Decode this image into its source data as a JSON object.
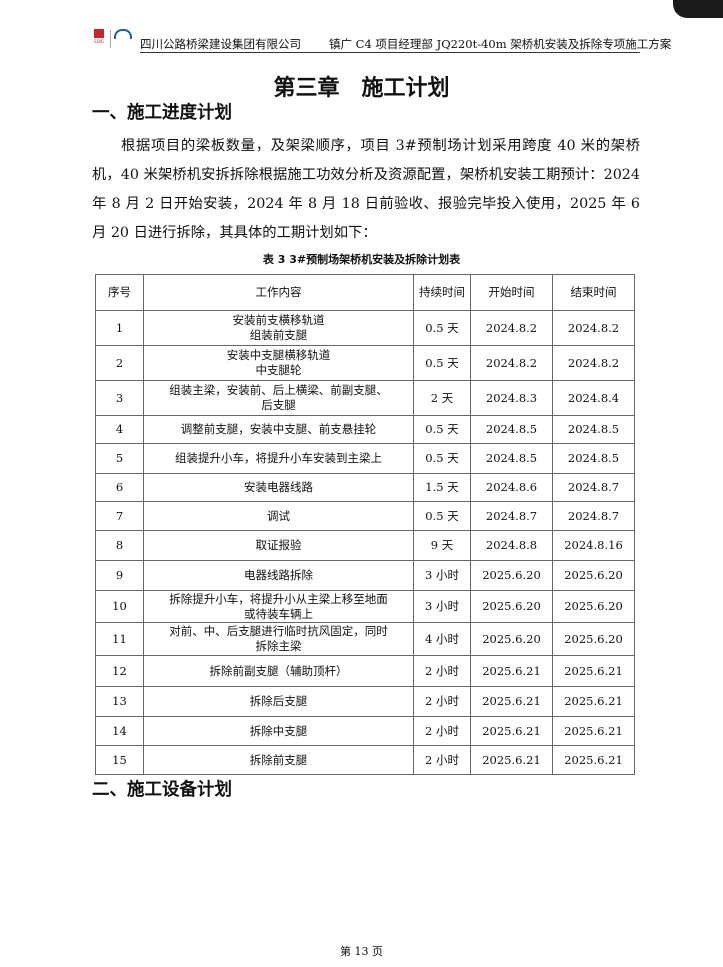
{
  "header": {
    "logo1_text": "SDIG",
    "company": "四川公路桥梁建设集团有限公司",
    "project": "镇广 C4 项目经理部 JQ220t-40m 架桥机安装及拆除专项施工方案"
  },
  "chapter_title": "第三章　施工计划",
  "section1": "一、施工进度计划",
  "paragraph": "根据项目的梁板数量，及架梁顺序，项目 3#预制场计划采用跨度 40 米的架桥机，40 米架桥机安拆拆除根据施工功效分析及资源配置，架桥机安装工期预计：2024 年 8 月 2 日开始安装，2024 年 8 月 18 日前验收、报验完毕投入使用，2025 年 6 月 20 日进行拆除，其具体的工期计划如下：",
  "table_caption": "表 3  3#预制场架桥机安装及拆除计划表",
  "table": {
    "headers": [
      "序号",
      "工作内容",
      "持续时间",
      "开始时间",
      "结束时间"
    ],
    "rows": [
      [
        "1",
        "安装前支横移轨道\n组装前支腿",
        "0.5 天",
        "2024.8.2",
        "2024.8.2"
      ],
      [
        "2",
        "安装中支腿横移轨道\n中支腿轮",
        "0.5 天",
        "2024.8.2",
        "2024.8.2"
      ],
      [
        "3",
        "组装主梁，安装前、后上横梁、前副支腿、\n后支腿",
        "2 天",
        "2024.8.3",
        "2024.8.4"
      ],
      [
        "4",
        "调整前支腿，安装中支腿、前支悬挂轮",
        "0.5 天",
        "2024.8.5",
        "2024.8.5"
      ],
      [
        "5",
        "组装提升小车，将提升小车安装到主梁上",
        "0.5 天",
        "2024.8.5",
        "2024.8.5"
      ],
      [
        "6",
        "安装电器线路",
        "1.5 天",
        "2024.8.6",
        "2024.8.7"
      ],
      [
        "7",
        "调试",
        "0.5 天",
        "2024.8.7",
        "2024.8.7"
      ],
      [
        "8",
        "取证报验",
        "9 天",
        "2024.8.8",
        "2024.8.16"
      ],
      [
        "9",
        "电器线路拆除",
        "3 小时",
        "2025.6.20",
        "2025.6.20"
      ],
      [
        "10",
        "拆除提升小车，将提升小从主梁上移至地面\n或待装车辆上",
        "3 小时",
        "2025.6.20",
        "2025.6.20"
      ],
      [
        "11",
        "对前、中、后支腿进行临时抗风固定，同时\n拆除主梁",
        "4 小时",
        "2025.6.20",
        "2025.6.20"
      ],
      [
        "12",
        "拆除前副支腿（辅助顶杆）",
        "2 小时",
        "2025.6.21",
        "2025.6.21"
      ],
      [
        "13",
        "拆除后支腿",
        "2 小时",
        "2025.6.21",
        "2025.6.21"
      ],
      [
        "14",
        "拆除中支腿",
        "2 小时",
        "2025.6.21",
        "2025.6.21"
      ],
      [
        "15",
        "拆除前支腿",
        "2 小时",
        "2025.6.21",
        "2025.6.21"
      ]
    ]
  },
  "section2": "二、施工设备计划",
  "footer": "第 13 页"
}
